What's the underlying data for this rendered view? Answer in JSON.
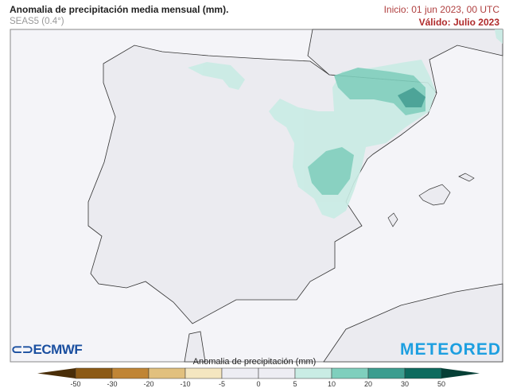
{
  "header": {
    "title": "Anomalia de precipitación media mensual (mm).",
    "model": "SEAS5 (0.4°)",
    "init": "Inicio: 01 jun 2023, 00 UTC",
    "valid": "Válido: Julio 2023"
  },
  "logos": {
    "left": "ECMWF",
    "right": "METEORED"
  },
  "colorbar": {
    "title": "Anomalia de precipitación (mm)",
    "ticks": [
      "-50",
      "-30",
      "-20",
      "-10",
      "-5",
      "0",
      "5",
      "10",
      "20",
      "30",
      "50"
    ],
    "colors": [
      "#8c5a15",
      "#c08535",
      "#e1c07e",
      "#f4e6c0",
      "#ededf3",
      "#ededf3",
      "#c9ece4",
      "#7fcfbd",
      "#3c9d8f",
      "#0d6a5e"
    ],
    "low_extend_color": "#4a2e08",
    "high_extend_color": "#053f36"
  },
  "map": {
    "region": "Iberian Peninsula",
    "land_color": "#ebebf0",
    "sea_color": "#f4f4f8",
    "anomaly_areas": [
      {
        "range": "5 to 10",
        "color": "#c9ece4",
        "location": "Cantabrian range, Ebro valley, Valencia interior"
      },
      {
        "range": "10 to 20",
        "color": "#7fcfbd",
        "location": "Pyrenees, interior Castellón/Valencia"
      },
      {
        "range": "20 to 30",
        "color": "#3c9d8f",
        "location": "Eastern Pyrenees"
      }
    ]
  }
}
